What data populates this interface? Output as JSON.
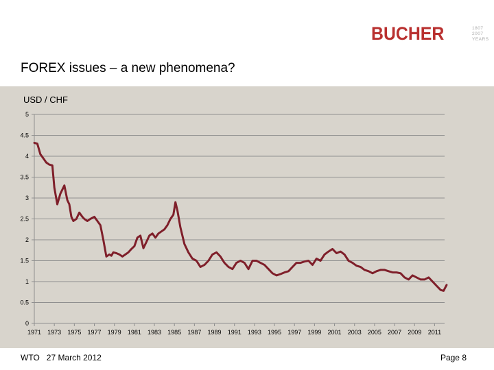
{
  "header": {
    "brand": "BUCHER",
    "brand_tag": [
      "1807",
      "2007",
      "YEARS"
    ],
    "title": "FOREX issues – a new phenomena?"
  },
  "footer": {
    "org": "WTO",
    "date": "27 March 2012",
    "page": "Page 8"
  },
  "colors": {
    "line": "#7f1f2a",
    "panel": "#d8d4cc",
    "brand": "#b9302f"
  },
  "chart_data": {
    "type": "line",
    "title": "USD / CHF",
    "ylim": [
      0,
      5
    ],
    "yticks": [
      "0",
      "0.5",
      "1",
      "1.5",
      "2",
      "2.5",
      "3",
      "3.5",
      "4",
      "4.5",
      "5"
    ],
    "xlim": [
      1971,
      2012
    ],
    "xticks": [
      "1971",
      "1973",
      "1975",
      "1977",
      "1979",
      "1981",
      "1983",
      "1985",
      "1987",
      "1989",
      "1991",
      "1993",
      "1995",
      "1997",
      "1999",
      "2001",
      "2003",
      "2005",
      "2007",
      "2009",
      "2011"
    ],
    "grid": true,
    "series": [
      {
        "x": [
          1971.0,
          1971.3,
          1971.6,
          1971.9,
          1972.2,
          1972.5,
          1972.8,
          1973.0,
          1973.3,
          1973.6,
          1974.0,
          1974.3,
          1974.5,
          1974.7,
          1974.9,
          1975.2,
          1975.5,
          1975.8,
          1976.0,
          1976.3,
          1976.6,
          1977.0,
          1977.3,
          1977.6,
          1977.9,
          1978.2,
          1978.5,
          1978.7,
          1978.9,
          1979.2,
          1979.5,
          1979.8,
          1980.1,
          1980.4,
          1980.7,
          1981.0,
          1981.3,
          1981.6,
          1981.9,
          1982.2,
          1982.5,
          1982.8,
          1983.1,
          1983.4,
          1983.7,
          1984.0,
          1984.3,
          1984.6,
          1984.9,
          1985.1,
          1985.3,
          1985.6,
          1986.0,
          1986.4,
          1986.8,
          1987.2,
          1987.6,
          1988.0,
          1988.4,
          1988.8,
          1989.2,
          1989.6,
          1990.0,
          1990.4,
          1990.8,
          1991.2,
          1991.6,
          1992.0,
          1992.4,
          1992.8,
          1993.2,
          1993.6,
          1994.0,
          1994.4,
          1994.8,
          1995.2,
          1995.6,
          1996.0,
          1996.4,
          1996.8,
          1997.2,
          1997.6,
          1998.0,
          1998.4,
          1998.8,
          1999.2,
          1999.6,
          2000.0,
          2000.4,
          2000.8,
          2001.2,
          2001.6,
          2002.0,
          2002.4,
          2002.8,
          2003.2,
          2003.6,
          2004.0,
          2004.4,
          2004.8,
          2005.2,
          2005.6,
          2006.0,
          2006.4,
          2006.8,
          2007.2,
          2007.6,
          2008.0,
          2008.4,
          2008.8,
          2009.2,
          2009.6,
          2010.0,
          2010.4,
          2010.8,
          2011.2,
          2011.6,
          2011.9,
          2012.2
        ],
        "y": [
          4.32,
          4.3,
          4.05,
          3.95,
          3.85,
          3.8,
          3.78,
          3.25,
          2.85,
          3.1,
          3.3,
          2.95,
          2.85,
          2.55,
          2.45,
          2.5,
          2.65,
          2.55,
          2.5,
          2.45,
          2.5,
          2.55,
          2.45,
          2.35,
          2.0,
          1.6,
          1.65,
          1.62,
          1.7,
          1.68,
          1.65,
          1.6,
          1.65,
          1.7,
          1.78,
          1.85,
          2.05,
          2.1,
          1.8,
          1.95,
          2.1,
          2.15,
          2.05,
          2.15,
          2.2,
          2.25,
          2.35,
          2.5,
          2.6,
          2.9,
          2.7,
          2.3,
          1.9,
          1.7,
          1.55,
          1.5,
          1.35,
          1.4,
          1.5,
          1.65,
          1.7,
          1.6,
          1.45,
          1.35,
          1.3,
          1.45,
          1.5,
          1.45,
          1.3,
          1.5,
          1.5,
          1.45,
          1.4,
          1.3,
          1.2,
          1.15,
          1.18,
          1.22,
          1.25,
          1.35,
          1.45,
          1.45,
          1.48,
          1.5,
          1.4,
          1.55,
          1.5,
          1.65,
          1.72,
          1.78,
          1.68,
          1.72,
          1.65,
          1.5,
          1.45,
          1.38,
          1.35,
          1.28,
          1.25,
          1.2,
          1.25,
          1.28,
          1.28,
          1.25,
          1.22,
          1.22,
          1.2,
          1.1,
          1.05,
          1.15,
          1.1,
          1.05,
          1.05,
          1.1,
          1.0,
          0.9,
          0.8,
          0.78,
          0.92
        ]
      }
    ]
  }
}
